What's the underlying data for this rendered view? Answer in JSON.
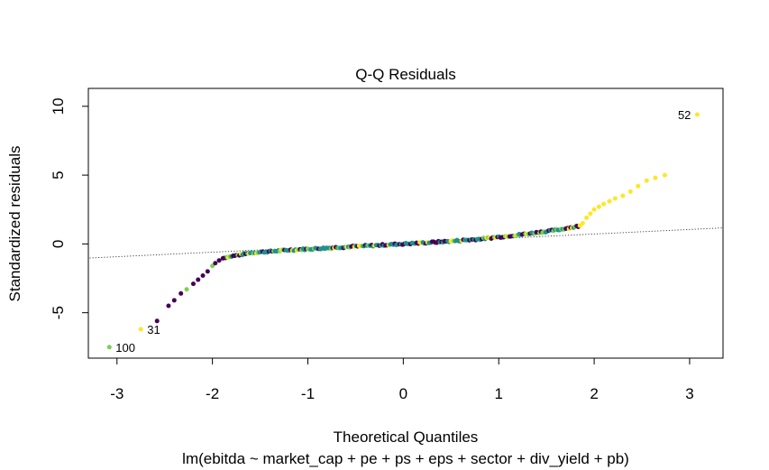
{
  "chart_data": {
    "type": "scatter",
    "title": "Q-Q Residuals",
    "xlabel": "Theoretical Quantiles",
    "ylabel": "Standardized residuals",
    "subtitle": "lm(ebitda ~ market_cap + pe + ps + eps + sector + div_yield + pb)",
    "xlim": [
      -3.3,
      3.35
    ],
    "ylim": [
      -8.3,
      11.3
    ],
    "x_ticks": [
      "-3",
      "-2",
      "-1",
      "0",
      "1",
      "2",
      "3"
    ],
    "y_ticks": [
      "-5",
      "0",
      "5",
      "10"
    ],
    "grid": false,
    "reference_line": {
      "style": "dotted",
      "intercept": 0.06,
      "slope": 0.33
    },
    "point_colors": {
      "purple": "#440154",
      "teal": "#21908c",
      "green": "#7ad151",
      "yellow": "#fde725"
    },
    "labeled_points": [
      {
        "label": "52",
        "x": 3.08,
        "y": 9.4
      },
      {
        "label": "31",
        "x": -2.75,
        "y": -6.2
      },
      {
        "label": "100",
        "x": -3.08,
        "y": -7.5
      }
    ],
    "upper_tail": [
      {
        "x": 1.88,
        "y": 1.5
      },
      {
        "x": 1.92,
        "y": 1.9
      },
      {
        "x": 1.96,
        "y": 2.2
      },
      {
        "x": 2.0,
        "y": 2.5
      },
      {
        "x": 2.05,
        "y": 2.7
      },
      {
        "x": 2.1,
        "y": 2.9
      },
      {
        "x": 2.16,
        "y": 3.1
      },
      {
        "x": 2.22,
        "y": 3.3
      },
      {
        "x": 2.3,
        "y": 3.5
      },
      {
        "x": 2.38,
        "y": 3.8
      },
      {
        "x": 2.46,
        "y": 4.2
      },
      {
        "x": 2.55,
        "y": 4.6
      },
      {
        "x": 2.64,
        "y": 4.8
      },
      {
        "x": 2.74,
        "y": 5.0
      }
    ],
    "lower_tail": [
      {
        "x": -2.58,
        "y": -5.6
      },
      {
        "x": -2.46,
        "y": -4.5
      },
      {
        "x": -2.4,
        "y": -4.1
      },
      {
        "x": -2.33,
        "y": -3.6
      },
      {
        "x": -2.27,
        "y": -3.3
      },
      {
        "x": -2.2,
        "y": -2.9
      },
      {
        "x": -2.15,
        "y": -2.6
      },
      {
        "x": -2.1,
        "y": -2.3
      },
      {
        "x": -2.05,
        "y": -2.0
      },
      {
        "x": -2.0,
        "y": -1.6
      },
      {
        "x": -1.97,
        "y": -1.4
      },
      {
        "x": -1.93,
        "y": -1.2
      },
      {
        "x": -1.89,
        "y": -1.05
      }
    ],
    "body_curve": {
      "x": [
        -1.88,
        -1.6,
        -1.2,
        -0.8,
        -0.4,
        0.0,
        0.4,
        0.8,
        1.2,
        1.6,
        1.85
      ],
      "y": [
        -1.0,
        -0.65,
        -0.45,
        -0.3,
        -0.15,
        0.0,
        0.15,
        0.35,
        0.65,
        1.0,
        1.3
      ]
    }
  }
}
